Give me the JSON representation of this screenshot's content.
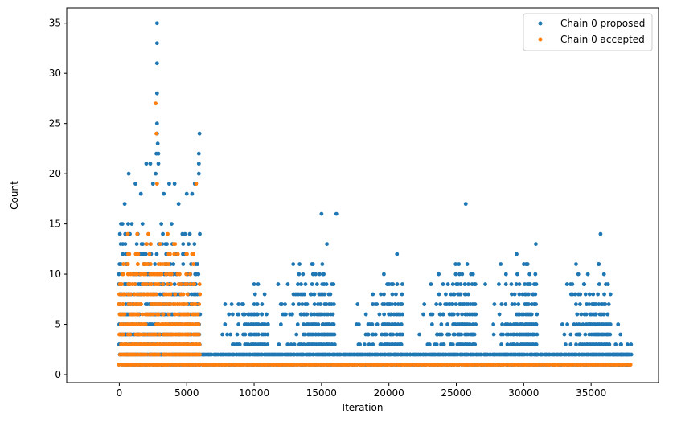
{
  "chart_data": {
    "type": "scatter",
    "title": "",
    "xlabel": "Iteration",
    "ylabel": "Count",
    "xlim": [
      -3900,
      40000
    ],
    "ylim": [
      -0.8,
      36.5
    ],
    "x_ticks": [
      0,
      5000,
      10000,
      15000,
      20000,
      25000,
      30000,
      35000
    ],
    "x_tick_labels": [
      "0",
      "5000",
      "10000",
      "15000",
      "20000",
      "25000",
      "30000",
      "35000"
    ],
    "y_ticks": [
      0,
      5,
      10,
      15,
      20,
      25,
      30,
      35
    ],
    "y_tick_labels": [
      "0",
      "5",
      "10",
      "15",
      "20",
      "25",
      "30",
      "35"
    ],
    "grid": false,
    "legend_position": "top-right",
    "series": [
      {
        "name": "Chain 0 proposed",
        "color": "#1f77b4",
        "regions": [
          {
            "x_range": [
              0,
              6000
            ],
            "count_range": [
              1,
              15
            ],
            "outliers": [
              [
                400,
                17
              ],
              [
                700,
                20
              ],
              [
                1200,
                19
              ],
              [
                1600,
                18
              ],
              [
                2000,
                21
              ],
              [
                2300,
                21
              ],
              [
                2500,
                19
              ],
              [
                2700,
                20
              ],
              [
                2750,
                22
              ],
              [
                2800,
                24
              ],
              [
                2800,
                25
              ],
              [
                2800,
                28
              ],
              [
                2800,
                31
              ],
              [
                2800,
                33
              ],
              [
                2800,
                35
              ],
              [
                2850,
                23
              ],
              [
                2900,
                21
              ],
              [
                2900,
                22
              ],
              [
                3300,
                18
              ],
              [
                3700,
                19
              ],
              [
                4100,
                19
              ],
              [
                4400,
                17
              ],
              [
                5000,
                18
              ],
              [
                5400,
                18
              ],
              [
                5600,
                19
              ],
              [
                5900,
                20
              ],
              [
                5900,
                21
              ],
              [
                5900,
                22
              ],
              [
                5950,
                24
              ]
            ]
          },
          {
            "x_range": [
              6000,
              38000
            ],
            "count_range": [
              1,
              2
            ],
            "outliers": []
          },
          {
            "x_range": [
              7000,
              11000
            ],
            "count_range": [
              3,
              9
            ],
            "outliers": [
              [
                10000,
                9
              ],
              [
                10300,
                9
              ]
            ]
          },
          {
            "x_range": [
              11000,
              16000
            ],
            "count_range": [
              3,
              12
            ],
            "outliers": [
              [
                15000,
                16
              ],
              [
                15400,
                13
              ],
              [
                16100,
                16
              ]
            ]
          },
          {
            "x_range": [
              17000,
              21000
            ],
            "count_range": [
              3,
              10
            ],
            "outliers": [
              [
                20600,
                12
              ]
            ]
          },
          {
            "x_range": [
              22000,
              26500
            ],
            "count_range": [
              3,
              11
            ],
            "outliers": [
              [
                25700,
                17
              ]
            ]
          },
          {
            "x_range": [
              27000,
              31000
            ],
            "count_range": [
              3,
              12
            ],
            "outliers": [
              [
                30900,
                13
              ]
            ]
          },
          {
            "x_range": [
              32000,
              36500
            ],
            "count_range": [
              3,
              11
            ],
            "outliers": [
              [
                35700,
                14
              ]
            ]
          },
          {
            "x_range": [
              36500,
              38000
            ],
            "count_range": [
              1,
              4
            ],
            "outliers": [
              [
                37000,
                5
              ]
            ]
          }
        ]
      },
      {
        "name": "Chain 0 accepted",
        "color": "#ff7f0e",
        "regions": [
          {
            "x_range": [
              0,
              6000
            ],
            "count_range": [
              1,
              14
            ],
            "outliers": [
              [
                2700,
                27
              ],
              [
                2750,
                24
              ],
              [
                2800,
                19
              ],
              [
                5700,
                19
              ]
            ]
          },
          {
            "x_range": [
              6000,
              38000
            ],
            "count_range": [
              1,
              1
            ],
            "outliers": []
          }
        ]
      }
    ]
  }
}
